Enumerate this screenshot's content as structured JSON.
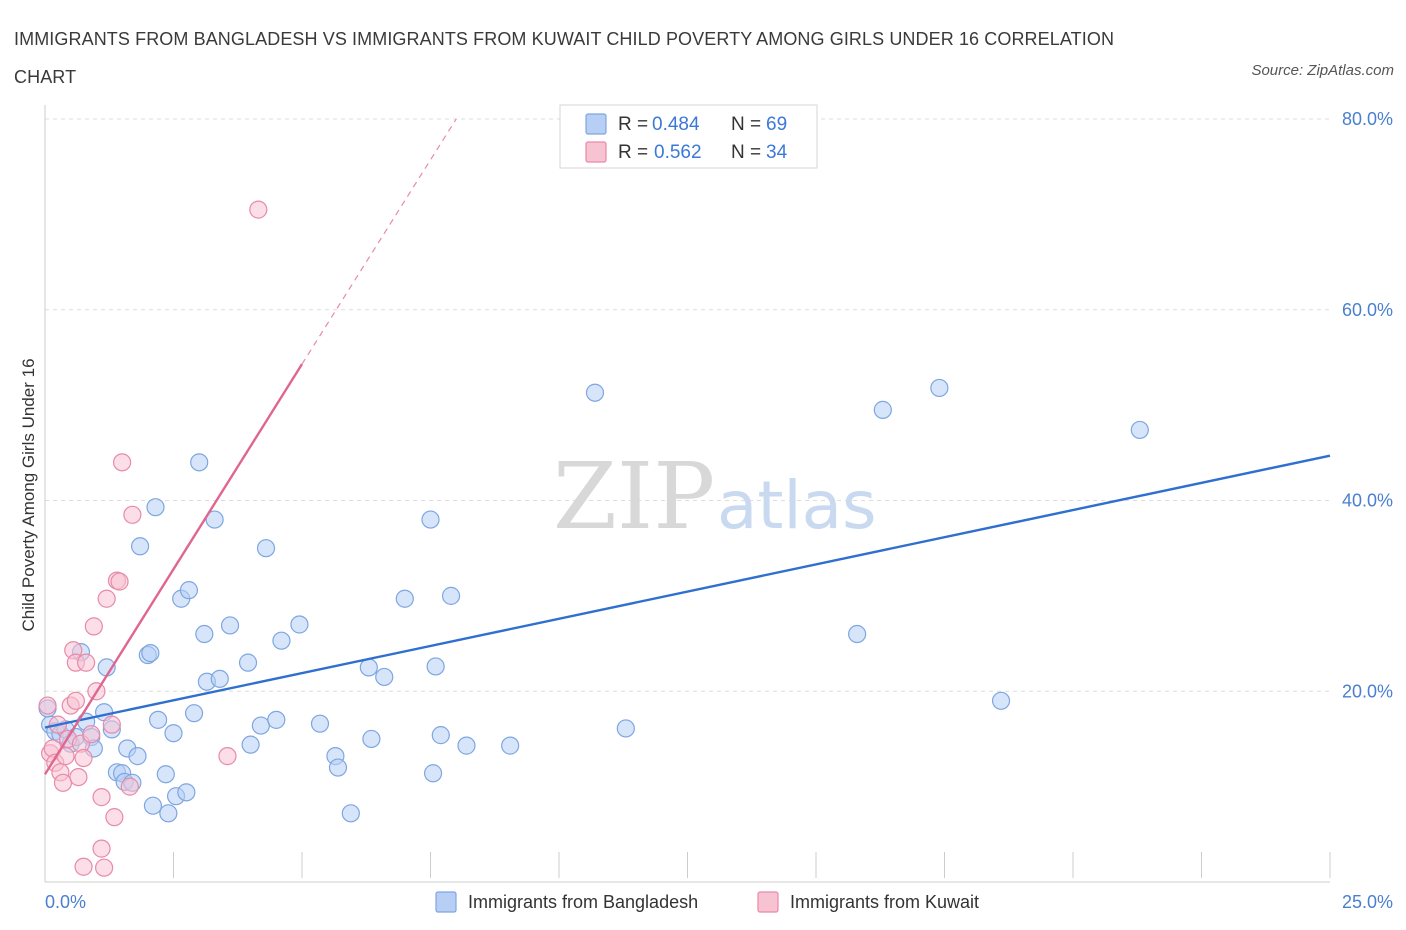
{
  "title": "IMMIGRANTS FROM BANGLADESH VS IMMIGRANTS FROM KUWAIT CHILD POVERTY AMONG GIRLS UNDER 16 CORRELATION CHART",
  "source": "Source: ZipAtlas.com",
  "watermark": {
    "zip": "ZIP",
    "atlas": "atlas"
  },
  "colors": {
    "bangladesh_fill": "#b7cff5",
    "bangladesh_stroke": "#7ea6e0",
    "bangladesh_line": "#2f6fcf",
    "kuwait_fill": "#f7c3d3",
    "kuwait_stroke": "#e88aa8",
    "kuwait_line": "#e0668f",
    "grid": "#dddddd",
    "axis_label": "#4a7fd0"
  },
  "legend": {
    "rows": [
      {
        "r_label": "R =",
        "r": "0.484",
        "n_label": "N =",
        "n": "69",
        "series": "bangladesh"
      },
      {
        "r_label": "R =",
        "r": "0.562",
        "n_label": "N =",
        "n": "34",
        "series": "kuwait"
      }
    ]
  },
  "chart_data": {
    "type": "scatter",
    "title": "IMMIGRANTS FROM BANGLADESH VS IMMIGRANTS FROM KUWAIT CHILD POVERTY AMONG GIRLS UNDER 16 CORRELATION CHART",
    "xlabel": "",
    "ylabel": "Child Poverty Among Girls Under 16",
    "xlim": [
      0,
      25
    ],
    "ylim": [
      0,
      80
    ],
    "x_tick_labels": [
      "0.0%",
      "25.0%"
    ],
    "y_ticks": [
      20,
      40,
      60,
      80
    ],
    "y_tick_labels": [
      "20.0%",
      "40.0%",
      "60.0%",
      "80.0%"
    ],
    "grid": true,
    "legend_position": "bottom",
    "series": [
      {
        "name": "Immigrants from Bangladesh",
        "color": "#b7cff5",
        "trend": {
          "x": [
            0,
            25
          ],
          "y": [
            16.2,
            44.7
          ],
          "style": "solid"
        },
        "points": [
          [
            0.1,
            16.5
          ],
          [
            0.2,
            15.8
          ],
          [
            0.3,
            15.5
          ],
          [
            0.4,
            16.0
          ],
          [
            0.5,
            14.5
          ],
          [
            0.6,
            15.2
          ],
          [
            0.7,
            24.1
          ],
          [
            0.8,
            16.8
          ],
          [
            0.9,
            15.2
          ],
          [
            0.95,
            14.0
          ],
          [
            1.15,
            17.8
          ],
          [
            1.2,
            22.5
          ],
          [
            1.3,
            16.0
          ],
          [
            1.4,
            11.5
          ],
          [
            1.5,
            11.4
          ],
          [
            1.55,
            10.5
          ],
          [
            1.6,
            14.0
          ],
          [
            1.7,
            10.4
          ],
          [
            1.8,
            13.2
          ],
          [
            1.85,
            35.2
          ],
          [
            2.0,
            23.8
          ],
          [
            2.05,
            24.0
          ],
          [
            2.1,
            8.0
          ],
          [
            2.15,
            39.3
          ],
          [
            2.2,
            17.0
          ],
          [
            2.35,
            11.3
          ],
          [
            2.4,
            7.2
          ],
          [
            2.5,
            15.6
          ],
          [
            2.55,
            9.0
          ],
          [
            2.65,
            29.7
          ],
          [
            2.75,
            9.4
          ],
          [
            2.8,
            30.6
          ],
          [
            2.9,
            17.7
          ],
          [
            3.0,
            44.0
          ],
          [
            3.1,
            26.0
          ],
          [
            3.15,
            21.0
          ],
          [
            3.3,
            38.0
          ],
          [
            3.4,
            21.3
          ],
          [
            3.6,
            26.9
          ],
          [
            3.95,
            23.0
          ],
          [
            4.0,
            14.4
          ],
          [
            4.2,
            16.4
          ],
          [
            4.3,
            35.0
          ],
          [
            4.5,
            17.0
          ],
          [
            4.6,
            25.3
          ],
          [
            4.95,
            27.0
          ],
          [
            5.35,
            16.6
          ],
          [
            5.65,
            13.2
          ],
          [
            5.7,
            12.0
          ],
          [
            5.95,
            7.2
          ],
          [
            6.3,
            22.5
          ],
          [
            6.35,
            15.0
          ],
          [
            6.6,
            21.5
          ],
          [
            7.0,
            29.7
          ],
          [
            7.5,
            38.0
          ],
          [
            7.55,
            11.4
          ],
          [
            7.6,
            22.6
          ],
          [
            7.7,
            15.4
          ],
          [
            7.9,
            30.0
          ],
          [
            8.2,
            14.3
          ],
          [
            9.05,
            14.3
          ],
          [
            10.7,
            51.3
          ],
          [
            11.3,
            16.1
          ],
          [
            15.8,
            26.0
          ],
          [
            16.3,
            49.5
          ],
          [
            17.4,
            51.8
          ],
          [
            18.6,
            19.0
          ],
          [
            21.3,
            47.4
          ],
          [
            0.05,
            18.2
          ]
        ]
      },
      {
        "name": "Immigrants from Kuwait",
        "color": "#f7c3d3",
        "trend": {
          "x": [
            0,
            5.0
          ],
          "y": [
            11.3,
            54.3
          ],
          "style": "solid",
          "dash_extension_to": [
            8.0,
            80.0
          ]
        },
        "points": [
          [
            0.05,
            18.5
          ],
          [
            0.1,
            13.5
          ],
          [
            0.15,
            14.0
          ],
          [
            0.2,
            12.5
          ],
          [
            0.3,
            11.5
          ],
          [
            0.35,
            10.4
          ],
          [
            0.4,
            13.2
          ],
          [
            0.45,
            15.0
          ],
          [
            0.5,
            18.5
          ],
          [
            0.55,
            24.3
          ],
          [
            0.6,
            23.0
          ],
          [
            0.65,
            11.0
          ],
          [
            0.7,
            14.5
          ],
          [
            0.75,
            13.0
          ],
          [
            0.8,
            23.0
          ],
          [
            0.9,
            15.5
          ],
          [
            0.95,
            26.8
          ],
          [
            1.0,
            20.0
          ],
          [
            1.1,
            8.9
          ],
          [
            1.1,
            3.5
          ],
          [
            1.15,
            1.5
          ],
          [
            1.2,
            29.7
          ],
          [
            1.3,
            16.5
          ],
          [
            1.35,
            6.8
          ],
          [
            1.4,
            31.6
          ],
          [
            1.45,
            31.5
          ],
          [
            1.5,
            44.0
          ],
          [
            1.65,
            10.0
          ],
          [
            1.7,
            38.5
          ],
          [
            0.75,
            1.6
          ],
          [
            3.55,
            13.2
          ],
          [
            4.15,
            70.5
          ],
          [
            0.25,
            16.5
          ],
          [
            0.6,
            19.0
          ]
        ]
      }
    ]
  },
  "bottom_legend": [
    {
      "label": "Immigrants from Bangladesh",
      "series": "bangladesh"
    },
    {
      "label": "Immigrants from Kuwait",
      "series": "kuwait"
    }
  ]
}
